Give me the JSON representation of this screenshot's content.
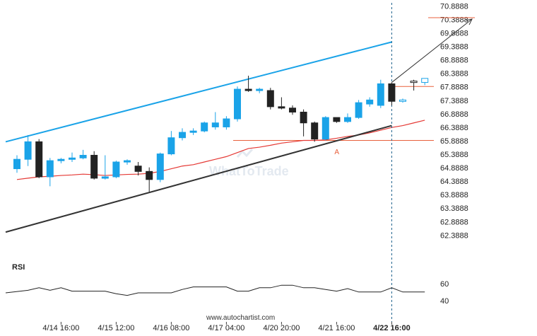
{
  "chart_data": [
    {
      "type": "candlestick",
      "y_ticks": [
        "70.8888",
        "70.3888",
        "69.8888",
        "69.3888",
        "68.8888",
        "68.3888",
        "67.8888",
        "67.3888",
        "66.8888",
        "66.3888",
        "65.8888",
        "65.3888",
        "64.8888",
        "64.3888",
        "63.8888",
        "63.3888",
        "62.8888",
        "62.3888"
      ],
      "ylim": [
        61.9,
        70.95
      ],
      "x_tick_labels": [
        {
          "label": "4/14 16:00",
          "index": 4
        },
        {
          "label": "4/15 12:00",
          "index": 9
        },
        {
          "label": "4/16 08:00",
          "index": 14
        },
        {
          "label": "4/17 04:00",
          "index": 19
        },
        {
          "label": "4/20 20:00",
          "index": 24
        },
        {
          "label": "4/21 16:00",
          "index": 29
        },
        {
          "label": "4/22 16:00",
          "index": 34,
          "bold": true
        }
      ],
      "candles": [
        {
          "o": 64.85,
          "h": 65.35,
          "l": 64.7,
          "c": 65.2
        },
        {
          "o": 65.2,
          "h": 66.1,
          "l": 64.95,
          "c": 65.85
        },
        {
          "o": 65.85,
          "h": 65.95,
          "l": 64.5,
          "c": 64.55
        },
        {
          "o": 64.55,
          "h": 65.25,
          "l": 64.2,
          "c": 65.15
        },
        {
          "o": 65.15,
          "h": 65.25,
          "l": 65.05,
          "c": 65.2
        },
        {
          "o": 65.2,
          "h": 65.45,
          "l": 65.1,
          "c": 65.25
        },
        {
          "o": 65.25,
          "h": 65.55,
          "l": 65.2,
          "c": 65.35
        },
        {
          "o": 65.35,
          "h": 65.5,
          "l": 64.45,
          "c": 64.5
        },
        {
          "o": 64.5,
          "h": 65.35,
          "l": 64.45,
          "c": 64.55
        },
        {
          "o": 64.55,
          "h": 65.15,
          "l": 64.5,
          "c": 65.1
        },
        {
          "o": 65.1,
          "h": 65.2,
          "l": 65.0,
          "c": 65.15
        },
        {
          "o": 64.95,
          "h": 65.1,
          "l": 64.6,
          "c": 64.75
        },
        {
          "o": 64.75,
          "h": 64.9,
          "l": 64.0,
          "c": 64.45
        },
        {
          "o": 64.45,
          "h": 65.45,
          "l": 64.35,
          "c": 65.4
        },
        {
          "o": 65.4,
          "h": 66.25,
          "l": 65.35,
          "c": 66.0
        },
        {
          "o": 66.0,
          "h": 66.35,
          "l": 65.9,
          "c": 66.2
        },
        {
          "o": 66.2,
          "h": 66.35,
          "l": 66.1,
          "c": 66.25
        },
        {
          "o": 66.25,
          "h": 66.6,
          "l": 66.2,
          "c": 66.55
        },
        {
          "o": 66.4,
          "h": 66.95,
          "l": 66.3,
          "c": 66.55
        },
        {
          "o": 66.4,
          "h": 66.8,
          "l": 66.3,
          "c": 66.7
        },
        {
          "o": 66.7,
          "h": 67.9,
          "l": 66.6,
          "c": 67.8
        },
        {
          "o": 67.8,
          "h": 68.3,
          "l": 67.7,
          "c": 67.75
        },
        {
          "o": 67.75,
          "h": 67.85,
          "l": 67.65,
          "c": 67.8
        },
        {
          "o": 67.75,
          "h": 67.85,
          "l": 67.05,
          "c": 67.15
        },
        {
          "o": 67.15,
          "h": 67.5,
          "l": 67.05,
          "c": 67.1
        },
        {
          "o": 67.1,
          "h": 67.2,
          "l": 66.85,
          "c": 66.95
        },
        {
          "o": 66.95,
          "h": 67.05,
          "l": 66.05,
          "c": 66.55
        },
        {
          "o": 66.55,
          "h": 66.6,
          "l": 65.85,
          "c": 65.95
        },
        {
          "o": 65.95,
          "h": 66.8,
          "l": 65.9,
          "c": 66.75
        },
        {
          "o": 66.75,
          "h": 66.75,
          "l": 66.55,
          "c": 66.6
        },
        {
          "o": 66.6,
          "h": 66.9,
          "l": 66.55,
          "c": 66.75
        },
        {
          "o": 66.75,
          "h": 67.4,
          "l": 66.7,
          "c": 67.3
        },
        {
          "o": 67.25,
          "h": 67.5,
          "l": 67.15,
          "c": 67.4
        },
        {
          "o": 67.2,
          "h": 68.15,
          "l": 67.1,
          "c": 68.0
        },
        {
          "o": 68.0,
          "h": 68.05,
          "l": 67.2,
          "c": 67.35
        },
        {
          "o": 67.35,
          "h": 67.45,
          "l": 67.3,
          "c": 67.4
        },
        {
          "o": 68.1,
          "h": 68.15,
          "l": 67.75,
          "c": 68.05
        },
        {
          "o": 68.05,
          "h": 68.2,
          "l": 67.95,
          "c": 68.2
        }
      ],
      "ma": [
        64.45,
        64.5,
        64.55,
        64.57,
        64.6,
        64.62,
        64.65,
        64.63,
        64.6,
        64.62,
        64.64,
        64.65,
        64.68,
        64.75,
        64.85,
        64.95,
        65.0,
        65.1,
        65.2,
        65.3,
        65.45,
        65.6,
        65.65,
        65.72,
        65.8,
        65.85,
        65.9,
        65.9,
        65.92,
        65.98,
        66.05,
        66.1,
        66.18,
        66.28,
        66.38,
        66.45,
        66.55,
        66.65
      ],
      "ma_color": "#e53935",
      "bull_color": "#1aa3e8",
      "bear_color": "#222222",
      "upper_channel": {
        "from": {
          "i": -2,
          "v": 65.85
        },
        "to": {
          "i": 34,
          "v": 69.55
        },
        "color": "#1aa3e8"
      },
      "lower_channel": {
        "from": {
          "i": -2,
          "v": 62.5
        },
        "to": {
          "i": 34,
          "v": 66.45
        },
        "color": "#333333"
      },
      "support_level": 65.9,
      "resistance_level": 67.9,
      "target_level": 70.45,
      "level_color": "#e8603c",
      "forecast_arrow": {
        "from": {
          "i": 34,
          "v": 68.05
        },
        "to": {
          "i": 42,
          "v": 70.4
        }
      },
      "point_label": {
        "text": "A",
        "i": 29,
        "v": 65.6
      },
      "pattern_end_index": 34,
      "watermark": "WhatToTrade"
    },
    {
      "type": "line",
      "name": "RSI",
      "y_ticks": [
        60,
        40
      ],
      "ylim": [
        34,
        64
      ],
      "values": [
        49,
        52,
        55,
        52,
        55,
        51,
        51,
        51,
        51,
        48,
        46,
        49,
        49,
        49,
        49,
        53,
        56,
        56,
        56,
        56,
        51,
        51,
        55,
        55,
        58,
        58,
        55,
        55,
        53,
        51,
        54,
        50,
        50,
        50,
        55,
        50,
        50,
        50
      ]
    }
  ],
  "footer": "www.autochartist.com"
}
